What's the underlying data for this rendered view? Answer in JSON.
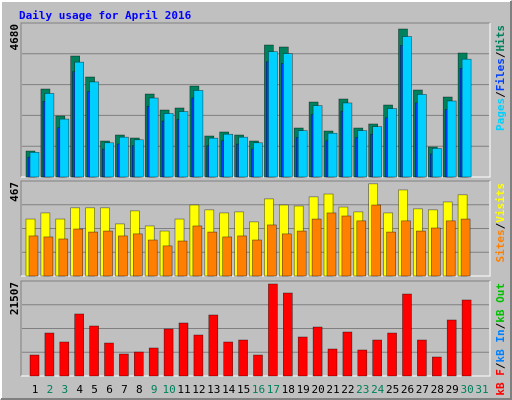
{
  "legend_separator": "/",
  "chart_data": [
    {
      "type": "bar",
      "title": "Daily usage for April 2016",
      "ylim": [
        0,
        4680
      ],
      "yticks": [
        4680
      ],
      "series": [
        {
          "name": "Pages",
          "color": "#00d0ff",
          "values": [
            750,
            2540,
            1760,
            3490,
            2890,
            1040,
            1210,
            1130,
            2400,
            1930,
            1990,
            2630,
            1180,
            1300,
            1210,
            1040,
            3810,
            3750,
            1410,
            2170,
            1330,
            2250,
            1410,
            1530,
            2080,
            4270,
            2510,
            870,
            2310,
            3580,
            null
          ]
        },
        {
          "name": "Files",
          "color": "#0040ff",
          "values": [
            600,
            2300,
            1500,
            3200,
            2600,
            850,
            1000,
            950,
            2150,
            1700,
            1750,
            2400,
            950,
            1100,
            1000,
            850,
            3500,
            3450,
            1200,
            1900,
            1100,
            2000,
            1200,
            1300,
            1800,
            4000,
            2250,
            700,
            2050,
            3300,
            null
          ]
        },
        {
          "name": "Hits",
          "color": "#00805c",
          "values": [
            790,
            2674,
            1854,
            3677,
            3039,
            1094,
            1276,
            1185,
            2522,
            2036,
            2097,
            2765,
            1246,
            1368,
            1276,
            1094,
            4011,
            3951,
            1489,
            2279,
            1398,
            2370,
            1489,
            1611,
            2188,
            4498,
            2644,
            912,
            2431,
            3768,
            null
          ]
        }
      ]
    },
    {
      "type": "bar",
      "ylim": [
        0,
        467
      ],
      "yticks": [
        467
      ],
      "series": [
        {
          "name": "Sites",
          "color": "#ff8000",
          "values": [
            197,
            192,
            182,
            231,
            216,
            221,
            197,
            207,
            177,
            148,
            172,
            246,
            216,
            192,
            197,
            177,
            251,
            207,
            221,
            280,
            310,
            295,
            271,
            349,
            216,
            271,
            221,
            236,
            271,
            280,
            null
          ]
        },
        {
          "name": "Visits",
          "color": "#ffff00",
          "values": [
            280,
            310,
            280,
            335,
            335,
            335,
            256,
            320,
            246,
            221,
            280,
            349,
            325,
            310,
            315,
            266,
            379,
            349,
            344,
            389,
            403,
            339,
            315,
            453,
            310,
            423,
            330,
            325,
            364,
            399,
            null
          ]
        }
      ]
    },
    {
      "type": "bar",
      "ylim": [
        0,
        21507
      ],
      "yticks": [
        21507
      ],
      "categories": [
        "1",
        "2",
        "3",
        "4",
        "5",
        "6",
        "7",
        "8",
        "9",
        "10",
        "11",
        "12",
        "13",
        "14",
        "15",
        "16",
        "17",
        "18",
        "19",
        "20",
        "21",
        "22",
        "23",
        "24",
        "25",
        "26",
        "27",
        "28",
        "29",
        "30",
        "31"
      ],
      "category_colors": [
        "#000000",
        "#00805c",
        "#00805c",
        "#000000",
        "#000000",
        "#000000",
        "#000000",
        "#000000",
        "#00805c",
        "#00805c",
        "#000000",
        "#000000",
        "#000000",
        "#000000",
        "#000000",
        "#00805c",
        "#00805c",
        "#000000",
        "#000000",
        "#000000",
        "#000000",
        "#000000",
        "#00805c",
        "#00805c",
        "#000000",
        "#000000",
        "#000000",
        "#000000",
        "#000000",
        "#00805c",
        "#00805c"
      ],
      "series": [
        {
          "name": "kB F",
          "color": "#ff0000",
          "values": [
            4750,
            9730,
            7700,
            14040,
            11320,
            7470,
            4980,
            5430,
            6340,
            10640,
            12000,
            9280,
            13810,
            7700,
            8150,
            4750,
            20830,
            18790,
            8830,
            11090,
            6110,
            9960,
            5890,
            8150,
            9730,
            18560,
            8150,
            4300,
            12680,
            17210,
            null
          ]
        },
        {
          "name": "kB In",
          "color": "#0080ff",
          "values": [
            null,
            null,
            null,
            null,
            null,
            null,
            null,
            null,
            null,
            null,
            null,
            null,
            null,
            null,
            null,
            null,
            null,
            null,
            null,
            null,
            null,
            null,
            null,
            null,
            null,
            null,
            null,
            null,
            null,
            null,
            null
          ]
        },
        {
          "name": "kB Out",
          "color": "#00c000",
          "values": [
            null,
            null,
            null,
            null,
            null,
            null,
            null,
            null,
            null,
            null,
            null,
            null,
            null,
            null,
            null,
            null,
            null,
            null,
            null,
            null,
            null,
            null,
            null,
            null,
            null,
            null,
            null,
            null,
            null,
            null,
            null
          ]
        }
      ]
    }
  ]
}
